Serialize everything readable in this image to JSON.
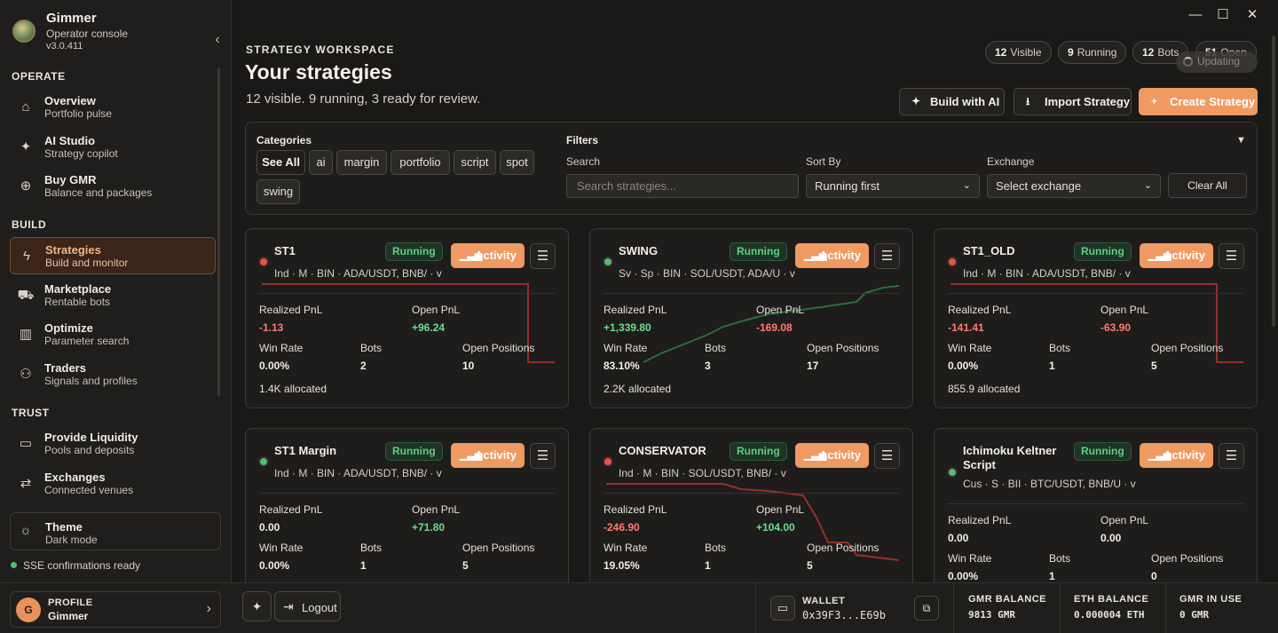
{
  "app": {
    "name": "Gimmer",
    "subtitle": "Operator console",
    "version": "v3.0.411"
  },
  "sidebar": {
    "sections": {
      "operate": "OPERATE",
      "build": "BUILD",
      "trust": "TRUST"
    },
    "items": [
      {
        "label": "Overview",
        "sub": "Portfolio pulse",
        "icon": "home-icon"
      },
      {
        "label": "AI Studio",
        "sub": "Strategy copilot",
        "icon": "sparkle-icon"
      },
      {
        "label": "Buy GMR",
        "sub": "Balance and packages",
        "icon": "plus-circle-icon"
      },
      {
        "label": "Strategies",
        "sub": "Build and monitor",
        "icon": "lightning-icon"
      },
      {
        "label": "Marketplace",
        "sub": "Rentable bots",
        "icon": "cart-icon"
      },
      {
        "label": "Optimize",
        "sub": "Parameter search",
        "icon": "bar-chart-icon"
      },
      {
        "label": "Traders",
        "sub": "Signals and profiles",
        "icon": "users-icon"
      },
      {
        "label": "Provide Liquidity",
        "sub": "Pools and deposits",
        "icon": "card-icon"
      },
      {
        "label": "Exchanges",
        "sub": "Connected venues",
        "icon": "swap-icon"
      }
    ],
    "theme": {
      "label": "Theme",
      "value": "Dark mode"
    },
    "sse": "SSE confirmations ready"
  },
  "profile": {
    "label": "PROFILE",
    "name": "Gimmer",
    "initial": "G"
  },
  "logout": "Logout",
  "wallet": {
    "label": "WALLET",
    "address": "0x39F3...E69b"
  },
  "balances": [
    {
      "label": "GMR BALANCE",
      "value": "9813 GMR"
    },
    {
      "label": "ETH BALANCE",
      "value": "0.000004 ETH"
    },
    {
      "label": "GMR IN USE",
      "value": "0 GMR"
    }
  ],
  "header": {
    "kicker": "STRATEGY WORKSPACE",
    "title": "Your strategies",
    "subtitle": "12 visible. 9 running, 3 ready for review.",
    "pills": [
      {
        "num": "12",
        "label": "Visible"
      },
      {
        "num": "9",
        "label": "Running"
      },
      {
        "num": "12",
        "label": "Bots"
      },
      {
        "num": "51",
        "label": "Open"
      }
    ],
    "updating": "Updating",
    "build_ai": "Build with AI",
    "import": "Import Strategy",
    "create": "Create Strategy"
  },
  "filters": {
    "categories_label": "Categories",
    "categories": [
      "See All",
      "ai",
      "margin",
      "portfolio",
      "script",
      "spot",
      "swing"
    ],
    "filters_label": "Filters",
    "search_label": "Search",
    "search_placeholder": "Search strategies...",
    "sort_label": "Sort By",
    "sort_value": "Running first",
    "exchange_label": "Exchange",
    "exchange_value": "Select exchange",
    "clear": "Clear All"
  },
  "card_labels": {
    "realized": "Realized PnL",
    "open_pnl": "Open PnL",
    "win": "Win Rate",
    "bots": "Bots",
    "open_pos": "Open Positions",
    "activity": "Activity"
  },
  "cards": [
    {
      "name": "ST1",
      "status": "Running",
      "meta": "Ind  · M  · BIN  · ADA/USDT, BNB/  · v",
      "realized": "-1.13",
      "open": "+96.24",
      "win": "0.00%",
      "bots": "2",
      "positions": "10",
      "alloc": "1.4K allocated",
      "trend": "down",
      "dot": "#e8524a",
      "realized_cls": "neg",
      "open_cls": "pos"
    },
    {
      "name": "SWING",
      "status": "Running",
      "meta": "Sv  · Sp  · BIN  · SOL/USDT, ADA/U  · v",
      "realized": "+1,339.80",
      "open": "-169.08",
      "win": "83.10%",
      "bots": "3",
      "positions": "17",
      "alloc": "2.2K allocated",
      "trend": "up",
      "dot": "#4cc06e",
      "realized_cls": "pos",
      "open_cls": "neg"
    },
    {
      "name": "ST1_OLD",
      "status": "Running",
      "meta": "Ind  · M  · BIN  · ADA/USDT, BNB/  · v",
      "realized": "-141.41",
      "open": "-63.90",
      "win": "0.00%",
      "bots": "1",
      "positions": "5",
      "alloc": "855.9 allocated",
      "trend": "down",
      "dot": "#e8524a",
      "realized_cls": "neg",
      "open_cls": "neg"
    },
    {
      "name": "ST1 Margin",
      "status": "Running",
      "meta": "Ind  · M  · BIN  · ADA/USDT, BNB/  · v",
      "realized": "0.00",
      "open": "+71.80",
      "win": "0.00%",
      "bots": "1",
      "positions": "5",
      "alloc": "",
      "trend": "none",
      "dot": "#4cc06e",
      "realized_cls": "",
      "open_cls": "pos"
    },
    {
      "name": "CONSERVATOR",
      "status": "Running",
      "meta": "Ind  · M  · BIN  · SOL/USDT, BNB/  · v",
      "realized": "-246.90",
      "open": "+104.00",
      "win": "19.05%",
      "bots": "1",
      "positions": "5",
      "alloc": "",
      "trend": "down2",
      "dot": "#e8524a",
      "realized_cls": "neg",
      "open_cls": "pos"
    },
    {
      "name": "Ichimoku Keltner Script",
      "status": "Running",
      "meta": "Cus  · S  · BII  · BTC/USDT, BNB/U  · v",
      "realized": "0.00",
      "open": "0.00",
      "win": "0.00%",
      "bots": "1",
      "positions": "0",
      "alloc": "",
      "trend": "none",
      "dot": "#4cc06e",
      "realized_cls": "",
      "open_cls": ""
    }
  ],
  "colors": {
    "accent": "#ee9a62",
    "running": "#5fcf7e",
    "negative": "#ff7b72",
    "positive": "#6fdc8e"
  }
}
